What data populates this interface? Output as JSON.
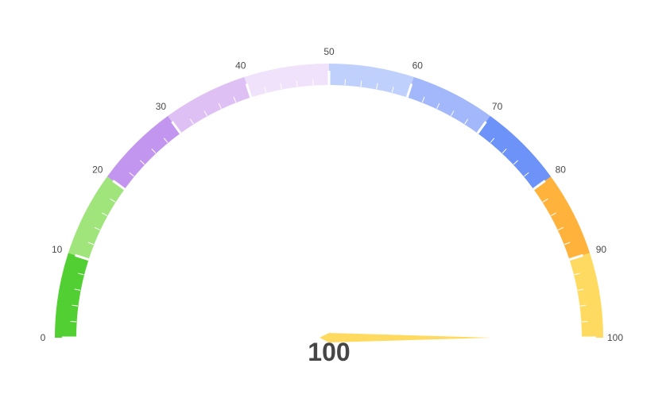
{
  "chart_data": {
    "type": "gauge",
    "min": 0,
    "max": 100,
    "value": 100,
    "value_text": "100",
    "major_ticks": [
      0,
      10,
      20,
      30,
      40,
      50,
      60,
      70,
      80,
      90,
      100
    ],
    "tick_labels": [
      "0",
      "10",
      "20",
      "30",
      "40",
      "50",
      "60",
      "70",
      "80",
      "90",
      "100"
    ],
    "minor_ticks_per_segment": 5,
    "bands": [
      {
        "from": 0,
        "to": 10,
        "color": "#52cf32"
      },
      {
        "from": 10,
        "to": 20,
        "color": "#a0e47c"
      },
      {
        "from": 20,
        "to": 30,
        "color": "#c296ef"
      },
      {
        "from": 30,
        "to": 40,
        "color": "#dfc0f5"
      },
      {
        "from": 40,
        "to": 50,
        "color": "#f1e2fb"
      },
      {
        "from": 50,
        "to": 60,
        "color": "#c0d0fd"
      },
      {
        "from": 60,
        "to": 70,
        "color": "#a3b8fb"
      },
      {
        "from": 70,
        "to": 80,
        "color": "#6d93f8"
      },
      {
        "from": 80,
        "to": 90,
        "color": "#ffb33c"
      },
      {
        "from": 90,
        "to": 100,
        "color": "#fedb60"
      }
    ],
    "pointer_color": "#fedb60",
    "tick_color": "#ffffff",
    "label_color": "#4a4a4a",
    "value_color": "#464646"
  }
}
